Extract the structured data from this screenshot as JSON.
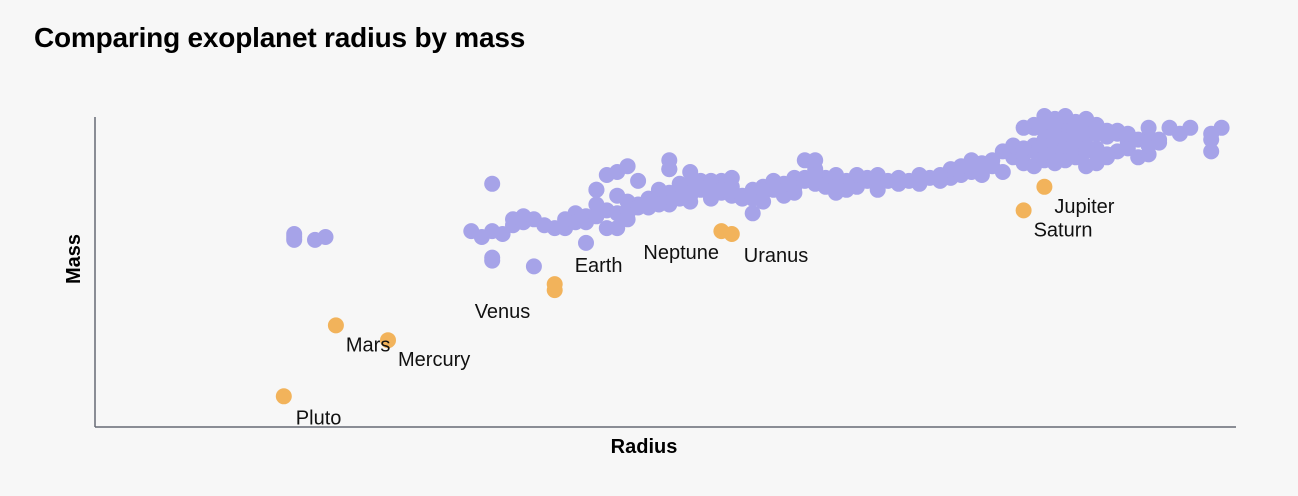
{
  "chart_data": {
    "type": "scatter",
    "title": "Comparing exoplanet radius by mass",
    "xlabel": "Radius",
    "ylabel": "Mass",
    "xlim": [
      0,
      100
    ],
    "ylim": [
      0,
      100
    ],
    "grid": false,
    "colors": {
      "exoplanets": "#a6a3e8",
      "solar_system": "#f2b35b",
      "axis": "#666a75",
      "background": "#f7f7f7"
    },
    "series": [
      {
        "key": "exoplanets",
        "points": [
          [
            10,
            58
          ],
          [
            10,
            59
          ],
          [
            10,
            60
          ],
          [
            12,
            58
          ],
          [
            13,
            59
          ],
          [
            29,
            77
          ],
          [
            29,
            51
          ],
          [
            29,
            61
          ],
          [
            29,
            52
          ],
          [
            30,
            60
          ],
          [
            28,
            59
          ],
          [
            32,
            66
          ],
          [
            31,
            65
          ],
          [
            31,
            63
          ],
          [
            32,
            64
          ],
          [
            33,
            65
          ],
          [
            34,
            63
          ],
          [
            35,
            62
          ],
          [
            36,
            62
          ],
          [
            38,
            57
          ],
          [
            33,
            49
          ],
          [
            27,
            61
          ],
          [
            41,
            81
          ],
          [
            40,
            80
          ],
          [
            42,
            83
          ],
          [
            39,
            75
          ],
          [
            46,
            82
          ],
          [
            46,
            85
          ],
          [
            48,
            81
          ],
          [
            42,
            71
          ],
          [
            46,
            82
          ],
          [
            52,
            73
          ],
          [
            54,
            67
          ],
          [
            55,
            71
          ],
          [
            57,
            74
          ],
          [
            60,
            82
          ],
          [
            59,
            85
          ],
          [
            60,
            85
          ],
          [
            41,
            62
          ],
          [
            42,
            65
          ],
          [
            41,
            73
          ],
          [
            39,
            75
          ],
          [
            40,
            68
          ],
          [
            42,
            67
          ],
          [
            39,
            70
          ],
          [
            38,
            64
          ],
          [
            40,
            62
          ],
          [
            36,
            65
          ],
          [
            37,
            67
          ],
          [
            44,
            71
          ],
          [
            46,
            74
          ],
          [
            43,
            78
          ],
          [
            45,
            75
          ],
          [
            47,
            77
          ],
          [
            49,
            75
          ],
          [
            48,
            71
          ],
          [
            50,
            72
          ],
          [
            51,
            74
          ],
          [
            53,
            72
          ],
          [
            55,
            74
          ],
          [
            57,
            73
          ],
          [
            58,
            74
          ],
          [
            55,
            76
          ],
          [
            54,
            72
          ],
          [
            52,
            75
          ],
          [
            50,
            73
          ],
          [
            46,
            70
          ],
          [
            44,
            72
          ],
          [
            43,
            70
          ],
          [
            45,
            73
          ],
          [
            48,
            73
          ],
          [
            49,
            76
          ],
          [
            53,
            73
          ],
          [
            56,
            75
          ],
          [
            58,
            76
          ],
          [
            60,
            77
          ],
          [
            61,
            76
          ],
          [
            62,
            74
          ],
          [
            63,
            75
          ],
          [
            64,
            76
          ],
          [
            66,
            76
          ],
          [
            68,
            77
          ],
          [
            70,
            77
          ],
          [
            71,
            79
          ],
          [
            72,
            78
          ],
          [
            73,
            79
          ],
          [
            74,
            80
          ],
          [
            75,
            81
          ],
          [
            76,
            80
          ],
          [
            75,
            85
          ],
          [
            76,
            84
          ],
          [
            74,
            83
          ],
          [
            73,
            82
          ],
          [
            72,
            80
          ],
          [
            70,
            80
          ],
          [
            78,
            81
          ],
          [
            79,
            86
          ],
          [
            80,
            84
          ],
          [
            81,
            83
          ],
          [
            82,
            85
          ],
          [
            83,
            84
          ],
          [
            84,
            85
          ],
          [
            85,
            86
          ],
          [
            86,
            83
          ],
          [
            87,
            84
          ],
          [
            88,
            86
          ],
          [
            89,
            88
          ],
          [
            80,
            87
          ],
          [
            81,
            88
          ],
          [
            82,
            87
          ],
          [
            84,
            88
          ],
          [
            85,
            89
          ],
          [
            86,
            88
          ],
          [
            87,
            87
          ],
          [
            88,
            87
          ],
          [
            83,
            86
          ],
          [
            81,
            89
          ],
          [
            81,
            90
          ],
          [
            82,
            91
          ],
          [
            83,
            90
          ],
          [
            84,
            90
          ],
          [
            85,
            91
          ],
          [
            86,
            90
          ],
          [
            87,
            89
          ],
          [
            82,
            92
          ],
          [
            83,
            93
          ],
          [
            84,
            94
          ],
          [
            85,
            95
          ],
          [
            86,
            93
          ],
          [
            85,
            90
          ],
          [
            86,
            89
          ],
          [
            81,
            96
          ],
          [
            82,
            95
          ],
          [
            83,
            96
          ],
          [
            84,
            97
          ],
          [
            85,
            96
          ],
          [
            86,
            95
          ],
          [
            87,
            96
          ],
          [
            88,
            95
          ],
          [
            89,
            94
          ],
          [
            87,
            94
          ],
          [
            86,
            97
          ],
          [
            84,
            98
          ],
          [
            82,
            98
          ],
          [
            82,
            100
          ],
          [
            81,
            97
          ],
          [
            80,
            96
          ],
          [
            79,
            90
          ],
          [
            80,
            89
          ],
          [
            78,
            88
          ],
          [
            77,
            85
          ],
          [
            76,
            83
          ],
          [
            75,
            82
          ],
          [
            77,
            83
          ],
          [
            83,
            99
          ],
          [
            84,
            100
          ],
          [
            85,
            98
          ],
          [
            86,
            99
          ],
          [
            87,
            97
          ],
          [
            88,
            93
          ],
          [
            89,
            95
          ],
          [
            90,
            91
          ],
          [
            91,
            92
          ],
          [
            90,
            89
          ],
          [
            91,
            86
          ],
          [
            92,
            87
          ],
          [
            92,
            90
          ],
          [
            90,
            94
          ],
          [
            92,
            93
          ],
          [
            93,
            92
          ],
          [
            93,
            91
          ],
          [
            94,
            96
          ],
          [
            95,
            94
          ],
          [
            92,
            96
          ],
          [
            96,
            96
          ],
          [
            98,
            92
          ],
          [
            98,
            94
          ],
          [
            99,
            96
          ],
          [
            98,
            88
          ],
          [
            66,
            75
          ],
          [
            65,
            78
          ],
          [
            65,
            79
          ],
          [
            66,
            80
          ],
          [
            63,
            78
          ],
          [
            64,
            80
          ],
          [
            62,
            80
          ],
          [
            61,
            79
          ],
          [
            63,
            77
          ],
          [
            67,
            78
          ],
          [
            68,
            79
          ],
          [
            69,
            78
          ],
          [
            57,
            77
          ],
          [
            56,
            78
          ],
          [
            58,
            79
          ],
          [
            59,
            79
          ],
          [
            60,
            80
          ],
          [
            62,
            79
          ],
          [
            52,
            79
          ],
          [
            51,
            78
          ],
          [
            50,
            78
          ],
          [
            49,
            78
          ],
          [
            52,
            76
          ],
          [
            50,
            77
          ],
          [
            48,
            77
          ],
          [
            47,
            76
          ],
          [
            37,
            64
          ],
          [
            38,
            66
          ],
          [
            39,
            66
          ],
          [
            41,
            67
          ],
          [
            42,
            68
          ],
          [
            43,
            69
          ],
          [
            44,
            69
          ],
          [
            45,
            70
          ],
          [
            47,
            72
          ],
          [
            48,
            74
          ],
          [
            51,
            75
          ],
          [
            54,
            75
          ],
          [
            55,
            75
          ],
          [
            56,
            76
          ],
          [
            59,
            78
          ],
          [
            60,
            78
          ],
          [
            62,
            76
          ]
        ]
      },
      {
        "key": "solar_system",
        "points": [
          {
            "name": "Pluto",
            "x": 9,
            "y": 5
          },
          {
            "name": "Mars",
            "x": 14,
            "y": 29
          },
          {
            "name": "Mercury",
            "x": 19,
            "y": 24
          },
          {
            "name": "Venus",
            "x": 35,
            "y": 41
          },
          {
            "name": "Earth",
            "x": 35,
            "y": 43
          },
          {
            "name": "Neptune",
            "x": 51,
            "y": 61
          },
          {
            "name": "Uranus",
            "x": 52,
            "y": 60
          },
          {
            "name": "Saturn",
            "x": 80,
            "y": 68
          },
          {
            "name": "Jupiter",
            "x": 82,
            "y": 76
          }
        ]
      }
    ]
  }
}
